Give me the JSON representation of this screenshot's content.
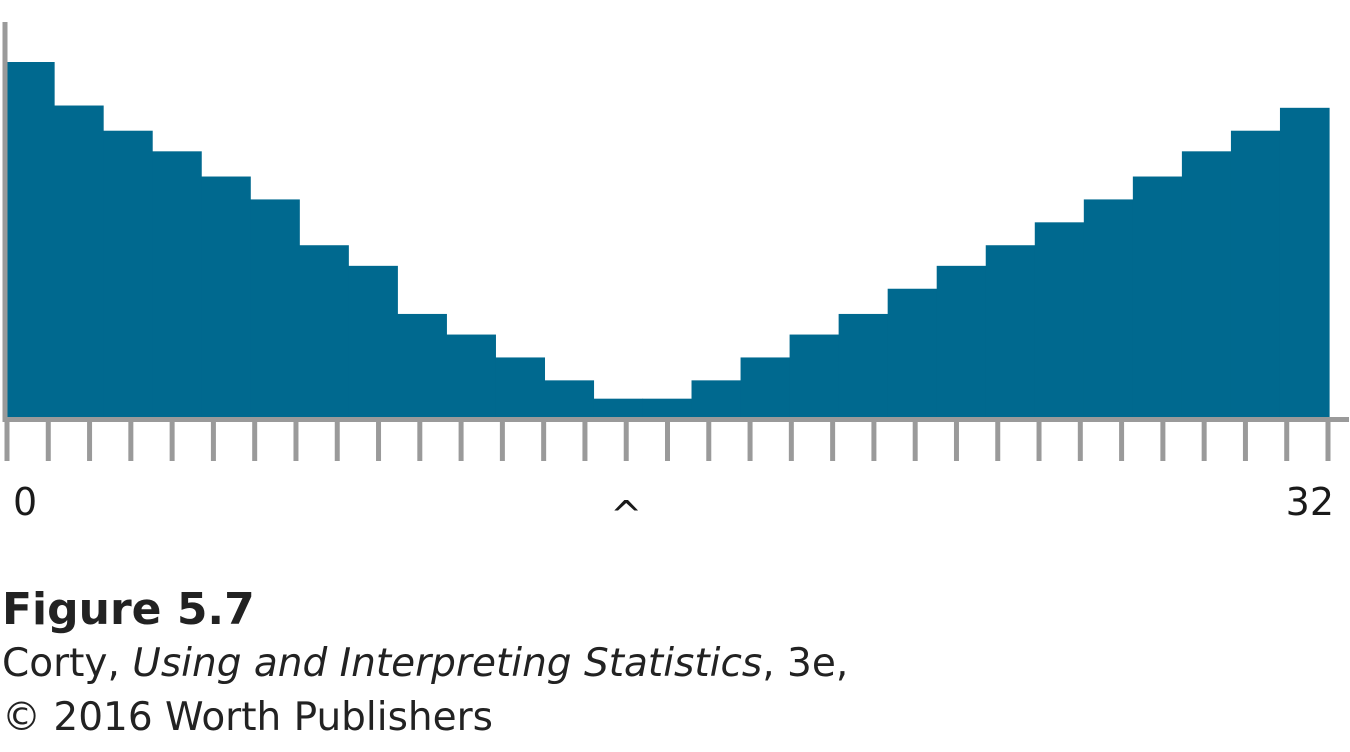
{
  "chart_data": {
    "type": "bar",
    "values": [
      15.5,
      13.6,
      12.5,
      11.6,
      10.5,
      9.5,
      7.5,
      6.6,
      4.5,
      3.6,
      2.6,
      1.6,
      0.8,
      0.8,
      1.6,
      2.6,
      3.6,
      4.5,
      5.6,
      6.6,
      7.5,
      8.5,
      9.5,
      10.5,
      11.6,
      12.5,
      13.5
    ],
    "color": "#00698f",
    "xlim": [
      0,
      32
    ],
    "tick_count": 33,
    "tick_labels": [
      {
        "tick": 0,
        "text": "0"
      },
      {
        "tick": 15,
        "text": "^"
      },
      {
        "tick": 32,
        "text": "32"
      }
    ],
    "axis_color": "#9a9a9a",
    "grid": false,
    "legend": "none"
  },
  "caption": {
    "title": "Figure 5.7",
    "line1_author": "Corty, ",
    "line1_book": "Using and Interpreting Statistics",
    "line1_edition": ", 3e,",
    "line2": "© 2016 Worth Publishers"
  }
}
